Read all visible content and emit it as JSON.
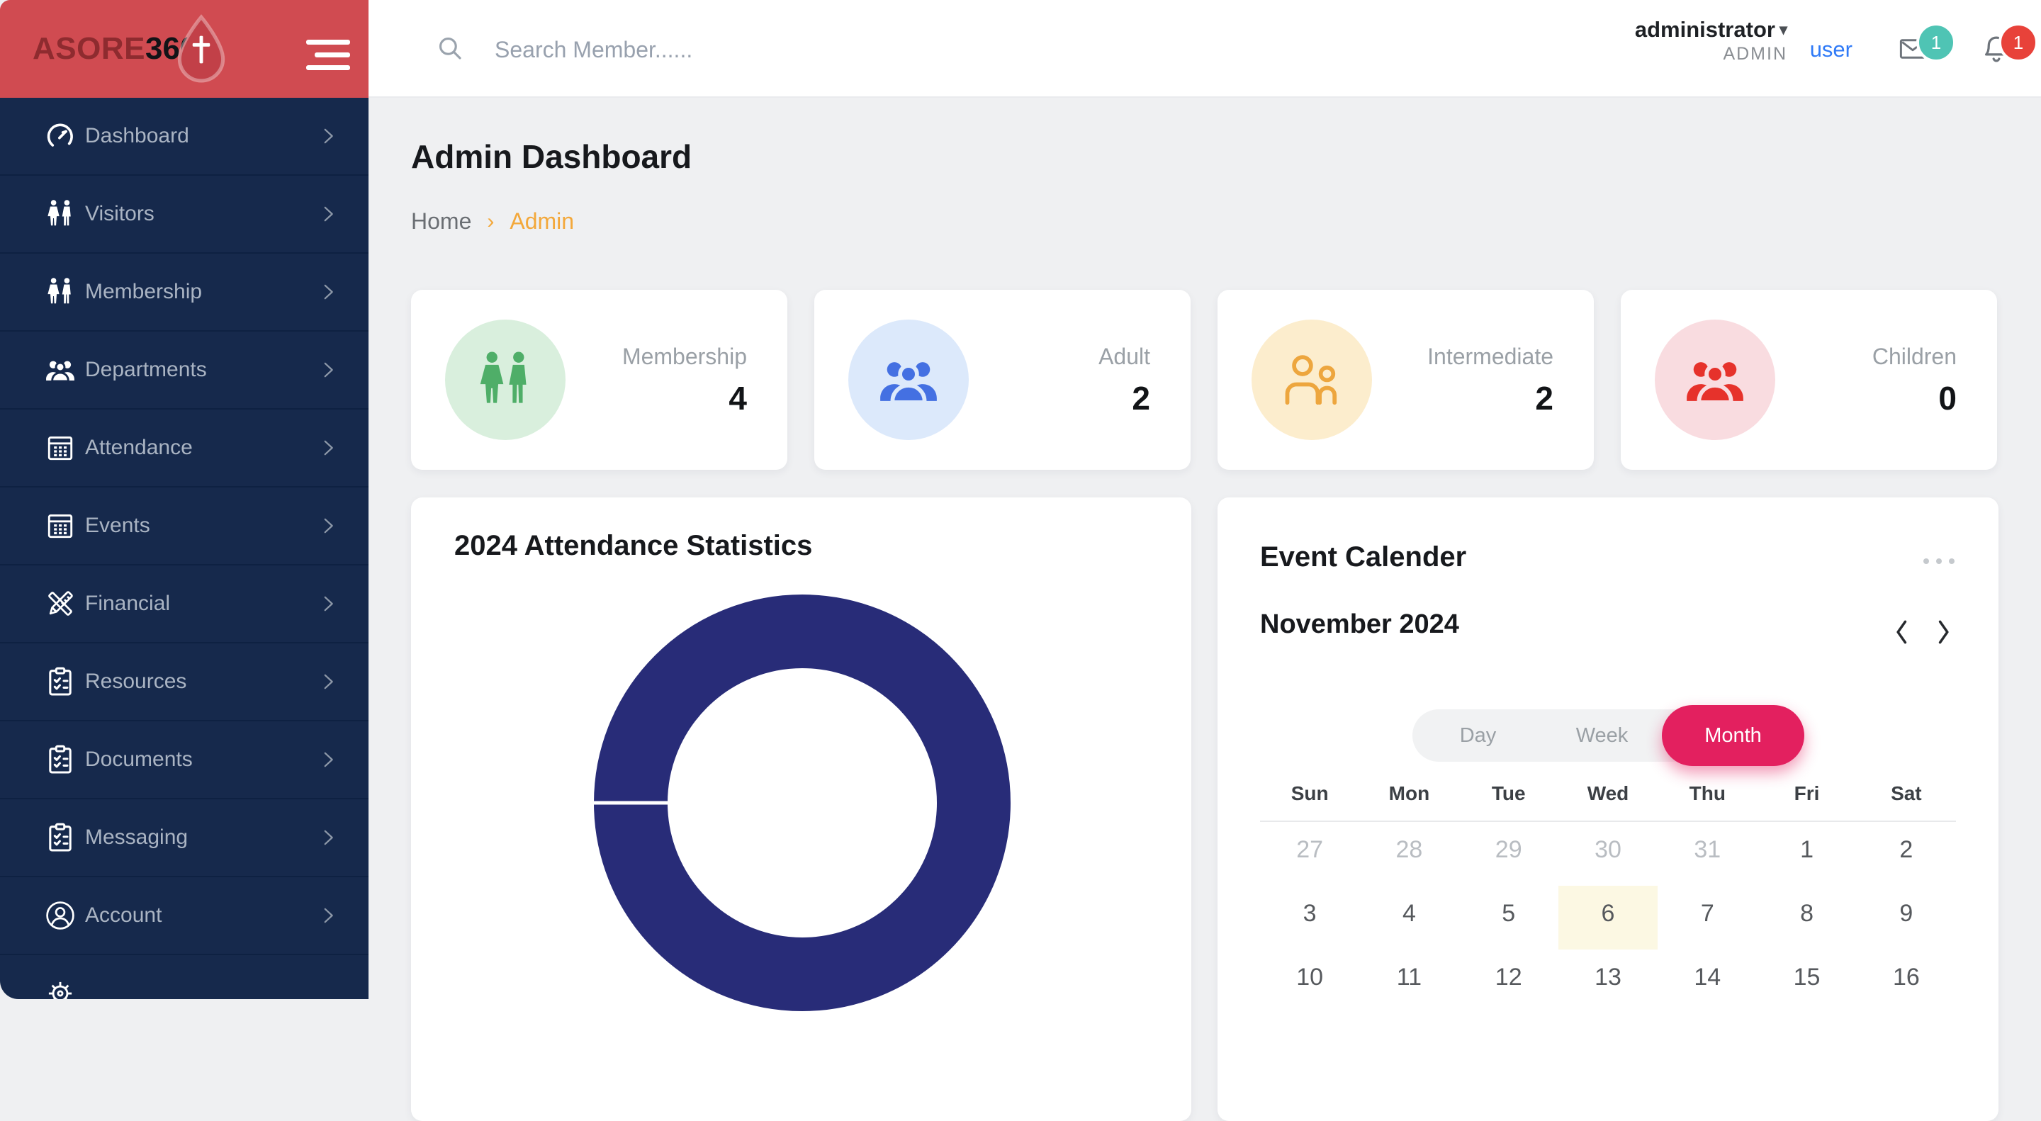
{
  "brand": {
    "primary": "ASORE",
    "secondary": "360"
  },
  "topbar": {
    "search_placeholder": "Search Member......",
    "username": "administrator",
    "role": "ADMIN",
    "user_link": "user",
    "mail_badge": "1",
    "bell_badge": "1"
  },
  "sidebar": {
    "items": [
      {
        "label": "Dashboard",
        "icon": "gauge-icon"
      },
      {
        "label": "Visitors",
        "icon": "people-icon"
      },
      {
        "label": "Membership",
        "icon": "people-icon"
      },
      {
        "label": "Departments",
        "icon": "group-icon"
      },
      {
        "label": "Attendance",
        "icon": "calendar-grid-icon"
      },
      {
        "label": "Events",
        "icon": "calendar-grid-icon"
      },
      {
        "label": "Financial",
        "icon": "ruler-pencil-icon"
      },
      {
        "label": "Resources",
        "icon": "clipboard-icon"
      },
      {
        "label": "Documents",
        "icon": "clipboard-icon"
      },
      {
        "label": "Messaging",
        "icon": "clipboard-icon"
      },
      {
        "label": "Account",
        "icon": "account-icon"
      },
      {
        "label": "",
        "icon": "gear-icon"
      }
    ]
  },
  "page": {
    "title": "Admin Dashboard",
    "breadcrumb_home": "Home",
    "breadcrumb_current": "Admin"
  },
  "stats": [
    {
      "label": "Membership",
      "value": "4",
      "icon": "members-icon",
      "icon_color": "#4fae68",
      "circle_bg": "#d9efdd"
    },
    {
      "label": "Adult",
      "value": "2",
      "icon": "group-icon",
      "icon_color": "#4470e2",
      "circle_bg": "#dce9fb"
    },
    {
      "label": "Intermediate",
      "value": "2",
      "icon": "people-outline-icon",
      "icon_color": "#eda63e",
      "circle_bg": "#fcedcd"
    },
    {
      "label": "Children",
      "value": "0",
      "icon": "group-icon",
      "icon_color": "#e6322b",
      "circle_bg": "#f9dce0"
    }
  ],
  "attendance": {
    "title": "2024 Attendance Statistics"
  },
  "chart_data": {
    "type": "doughnut",
    "title": "2024 Attendance Statistics",
    "segments": [
      {
        "label": "Attendance",
        "value": 100,
        "color": "#282c78"
      }
    ],
    "seam_angle_deg": 180,
    "outer_radius_px": 294,
    "ring_thickness_px": 104,
    "legend": "none",
    "labels_visible": false
  },
  "calendar": {
    "title": "Event Calender",
    "month_label": "November 2024",
    "views": [
      "Day",
      "Week",
      "Month"
    ],
    "active_view": "Month",
    "weekdays": [
      "Sun",
      "Mon",
      "Tue",
      "Wed",
      "Thu",
      "Fri",
      "Sat"
    ],
    "weeks": [
      [
        {
          "day": "27",
          "muted": true
        },
        {
          "day": "28",
          "muted": true
        },
        {
          "day": "29",
          "muted": true
        },
        {
          "day": "30",
          "muted": true
        },
        {
          "day": "31",
          "muted": true
        },
        {
          "day": "1"
        },
        {
          "day": "2"
        }
      ],
      [
        {
          "day": "3"
        },
        {
          "day": "4"
        },
        {
          "day": "5"
        },
        {
          "day": "6",
          "today": true
        },
        {
          "day": "7"
        },
        {
          "day": "8"
        },
        {
          "day": "9"
        }
      ],
      [
        {
          "day": "10"
        },
        {
          "day": "11"
        },
        {
          "day": "12"
        },
        {
          "day": "13"
        },
        {
          "day": "14"
        },
        {
          "day": "15"
        },
        {
          "day": "16"
        }
      ]
    ],
    "colors": {
      "active_view_bg": "#e3205f",
      "today_bg": "#fcf8e3"
    }
  },
  "colors": {
    "header_red": "#d04b51",
    "sidebar_navy": "#16294c",
    "content_bg": "#eff0f2",
    "accent_orange": "#f3a83b",
    "link_blue": "#2f7af7",
    "badge_teal": "#4fc4b4",
    "badge_red": "#e8423a",
    "donut_navy": "#282c78"
  }
}
